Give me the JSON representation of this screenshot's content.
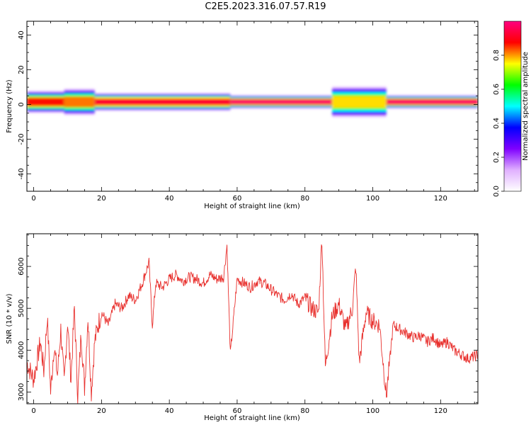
{
  "figure": {
    "title": "C2E5.2023.316.07.57.R19"
  },
  "colorbar": {
    "label": "Normalized spectral amplitude",
    "ticks": [
      0.0,
      0.2,
      0.4,
      0.6,
      0.8
    ],
    "tick_labels": [
      "0.0",
      "0.2",
      "0.4",
      "0.6",
      "0.8"
    ],
    "range": [
      0,
      1
    ],
    "colormap_stops": [
      "#ffffff",
      "#e0b0ff",
      "#7f00ff",
      "#0000ff",
      "#00ffff",
      "#00ff00",
      "#ffff00",
      "#ff0000",
      "#ff0080"
    ]
  },
  "chart_data": [
    {
      "type": "heatmap",
      "xlabel": "Height of straight line (km)",
      "ylabel": "Frequency (Hz)",
      "xlim": [
        -2,
        131
      ],
      "ylim": [
        -50,
        48
      ],
      "xticks": [
        0,
        20,
        40,
        60,
        80,
        100,
        120
      ],
      "xtick_labels": [
        "0",
        "20",
        "40",
        "60",
        "80",
        "100",
        "120"
      ],
      "yticks": [
        -40,
        -20,
        0,
        20,
        40
      ],
      "ytick_labels": [
        "-40",
        "-20",
        "0",
        "20",
        "40"
      ],
      "band": {
        "center_hz": 1.5,
        "segments": [
          {
            "x0": -2,
            "x1": 9,
            "width_hz": 5,
            "level": 0.85
          },
          {
            "x0": 9,
            "x1": 18,
            "width_hz": 6,
            "level": 0.8
          },
          {
            "x0": 18,
            "x1": 58,
            "width_hz": 4,
            "level": 0.9
          },
          {
            "x0": 58,
            "x1": 88,
            "width_hz": 3,
            "level": 0.95
          },
          {
            "x0": 88,
            "x1": 104,
            "width_hz": 7,
            "level": 0.75
          },
          {
            "x0": 104,
            "x1": 131,
            "width_hz": 3,
            "level": 0.95
          }
        ]
      }
    },
    {
      "type": "line",
      "xlabel": "Height of straight line (km)",
      "ylabel": "SNR (10 * v/v)",
      "xlim": [
        -2,
        131
      ],
      "ylim": [
        2720,
        6780
      ],
      "xticks": [
        0,
        20,
        40,
        60,
        80,
        100,
        120
      ],
      "xtick_labels": [
        "0",
        "20",
        "40",
        "60",
        "80",
        "100",
        "120"
      ],
      "yticks": [
        3000,
        4000,
        5000,
        6000
      ],
      "ytick_labels": [
        "3000",
        "4000",
        "5000",
        "6000"
      ],
      "series": [
        {
          "color": "#e8302d",
          "x": [
            -2,
            0,
            2,
            3,
            4,
            5,
            6,
            7,
            8,
            9,
            10,
            11,
            12,
            13,
            14,
            15,
            16,
            17,
            18,
            19,
            20,
            22,
            24,
            26,
            28,
            30,
            32,
            34,
            35,
            36,
            38,
            40,
            42,
            44,
            46,
            48,
            50,
            52,
            54,
            56,
            57,
            58,
            60,
            62,
            64,
            66,
            68,
            70,
            72,
            74,
            76,
            78,
            80,
            82,
            84,
            85,
            86,
            88,
            90,
            92,
            94,
            95,
            96,
            98,
            100,
            102,
            104,
            106,
            108,
            110,
            112,
            114,
            116,
            118,
            120,
            122,
            124,
            126,
            128,
            130,
            131
          ],
          "values": [
            3700,
            3300,
            4200,
            3500,
            4800,
            3000,
            4100,
            3400,
            4500,
            3200,
            4700,
            3300,
            5000,
            2900,
            4400,
            3100,
            4800,
            3000,
            4200,
            4600,
            4900,
            4600,
            5100,
            5000,
            5300,
            5200,
            5600,
            6100,
            4600,
            5600,
            5500,
            5700,
            5800,
            5650,
            5750,
            5700,
            5600,
            5800,
            5700,
            5750,
            6500,
            3900,
            5700,
            5600,
            5500,
            5650,
            5600,
            5450,
            5300,
            5200,
            5350,
            5100,
            5250,
            5000,
            4900,
            6700,
            3600,
            4800,
            5100,
            4500,
            5000,
            6000,
            3700,
            4900,
            4700,
            4600,
            2900,
            4600,
            4500,
            4400,
            4300,
            4350,
            4200,
            4300,
            4100,
            4200,
            4000,
            3900,
            3800,
            3850,
            3900
          ]
        }
      ]
    }
  ]
}
